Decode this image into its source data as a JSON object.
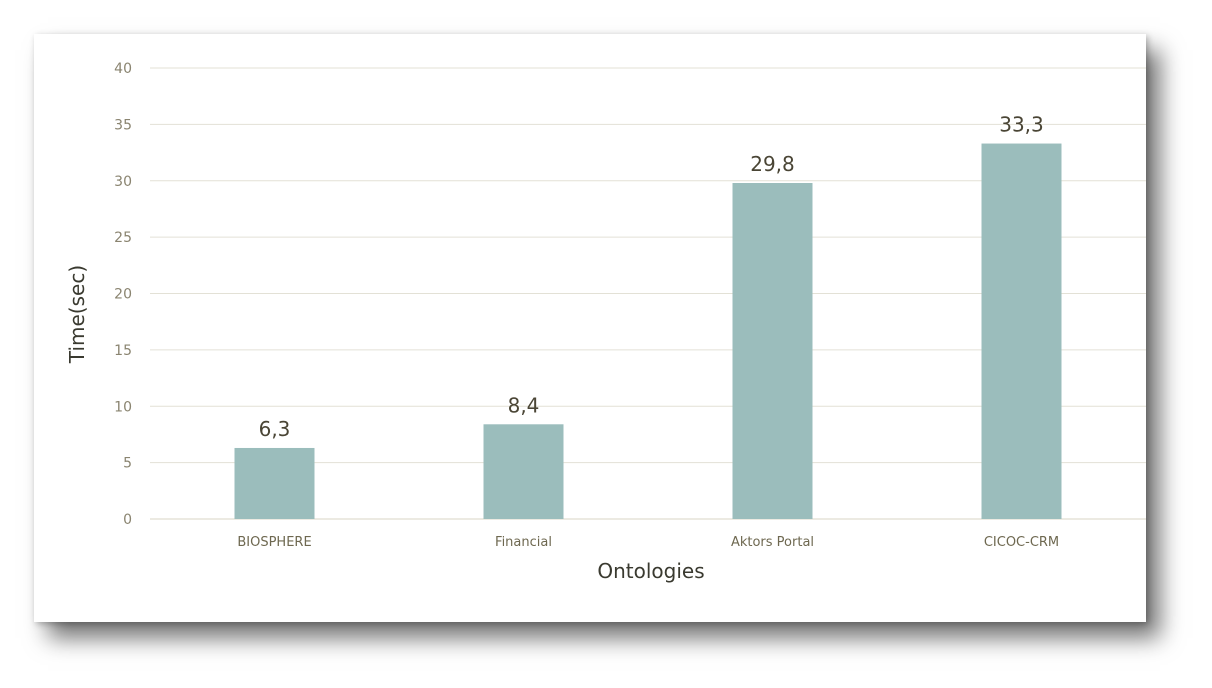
{
  "chart_data": {
    "type": "bar",
    "categories": [
      "BIOSPHERE",
      "Financial",
      "Aktors Portal",
      "CICOC-CRM"
    ],
    "values": [
      6.3,
      8.4,
      29.8,
      33.3
    ],
    "data_labels": [
      "6,3",
      "8,4",
      "29,8",
      "33,3"
    ],
    "xlabel": "Ontologies",
    "ylabel": "Time(sec)",
    "ylim": [
      0,
      40
    ],
    "yticks": [
      0,
      5,
      10,
      15,
      20,
      25,
      30,
      35,
      40
    ],
    "grid": true,
    "legend": "none",
    "colors": {
      "bar": "#9bbdbc",
      "grid": "#e3e1d6",
      "axis": "#d8d4c6"
    }
  }
}
